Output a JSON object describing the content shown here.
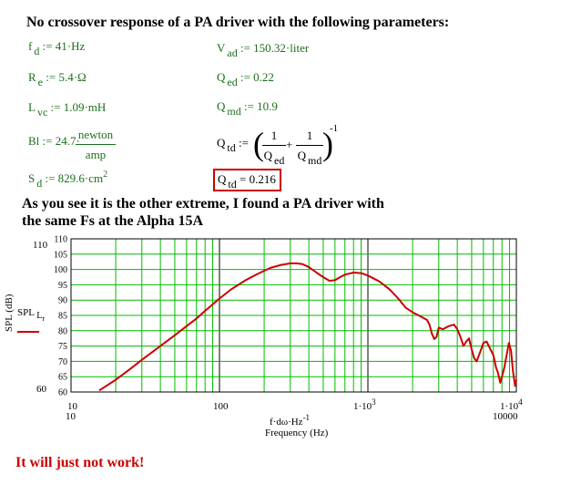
{
  "title": "No crossover response of a PA driver with the following parameters:",
  "params_left": {
    "fd": {
      "sym": "f",
      "sub": "d",
      "val": ":= 41·Hz"
    },
    "re": {
      "sym": "R",
      "sub": "e",
      "val": ":= 5.4·Ω"
    },
    "lvc": {
      "sym": "L",
      "sub": "vc",
      "val": ":= 1.09·mH"
    },
    "bl": {
      "sym": "Bl",
      "val": ":= 24.7·",
      "num": "newton",
      "den": "amp"
    },
    "sd": {
      "sym": "S",
      "sub": "d",
      "val": ":= 829.6·cm",
      "sup": "2"
    }
  },
  "params_right": {
    "vad": {
      "sym": "V",
      "sub": "ad",
      "val": ":= 150.32·liter"
    },
    "qed": {
      "sym": "Q",
      "sub": "ed",
      "val": ":= 0.22"
    },
    "qmd": {
      "sym": "Q",
      "sub": "md",
      "val": ":= 10.9"
    },
    "qtd_formula": {
      "sym": "Q",
      "sub": "td",
      "assign": ":=",
      "one": "1",
      "plus": "+",
      "den1": "Q",
      "den1sub": "ed",
      "den2": "Q",
      "den2sub": "md",
      "exp": "-1"
    },
    "qtd_result": {
      "sym": "Q",
      "sub": "td",
      "val": "= 0.216"
    }
  },
  "comment_line1": "As you see it is the other extreme, I found a PA driver with",
  "comment_line2": "the same Fs at the Alpha 15A",
  "conclusion": "It will just not work!",
  "chart_data": {
    "type": "line",
    "x_scale": "log",
    "xlim": [
      10,
      10000
    ],
    "ylim": [
      60,
      110
    ],
    "y_ticks": [
      "110",
      "105",
      "100",
      "95",
      "90",
      "85",
      "80",
      "75",
      "70",
      "65",
      "60"
    ],
    "y_outer_top": "110",
    "y_outer_bottom": "60",
    "x_ticks": {
      "left": "10",
      "mid": "100",
      "k1_base": "1·10",
      "k1_exp": "3",
      "k10_base": "1·10",
      "k10_exp": "4"
    },
    "x_outer_left": "10",
    "x_outer_right": "10000",
    "x_expr": "f·dω·Hz",
    "x_expr_exp": "-1",
    "xlabel": "Frequency (Hz)",
    "ylabel": "SPL (dB)",
    "legend_expr": "SPL",
    "legend_sub": "L",
    "legend_subsub": "r",
    "line_color": "#cc0000",
    "grid_color": "#00bb00",
    "series": [
      {
        "x": [
          15.5,
          20,
          25,
          30,
          40,
          50,
          60,
          70,
          80,
          100,
          120,
          150,
          180,
          220,
          260,
          300,
          330,
          360,
          400,
          450,
          500,
          550,
          600,
          650,
          700,
          800,
          900,
          1000,
          1100,
          1200,
          1400,
          1600,
          1800,
          2000,
          2200,
          2400,
          2500,
          2600,
          2700,
          2800,
          2900,
          3000,
          3200,
          3500,
          3800,
          4000,
          4200,
          4400,
          4600,
          4800,
          5000,
          5200,
          5400,
          5700,
          6000,
          6300,
          6600,
          7000,
          7300,
          7500,
          7800,
          8000,
          8300,
          8600,
          8900,
          9200,
          9500,
          9800,
          10000
        ],
        "y": [
          60.5,
          64,
          67.5,
          70.5,
          75,
          78.5,
          81.5,
          84,
          86.5,
          90.5,
          93.5,
          96.5,
          98.5,
          100.5,
          101.5,
          102,
          102,
          101.8,
          100.8,
          99,
          97.5,
          96.3,
          96.5,
          97.5,
          98.3,
          99,
          98.8,
          98,
          97,
          96,
          93.5,
          90.5,
          87.5,
          86,
          85,
          84,
          83.5,
          82,
          79,
          77.3,
          78,
          81,
          80.5,
          81.5,
          82,
          80.5,
          78,
          75,
          76.5,
          77.5,
          74,
          71,
          70,
          73,
          76,
          76.5,
          74.5,
          72,
          68,
          66.5,
          63,
          65,
          68,
          72,
          76,
          73.5,
          66.5,
          62,
          64
        ]
      }
    ]
  }
}
